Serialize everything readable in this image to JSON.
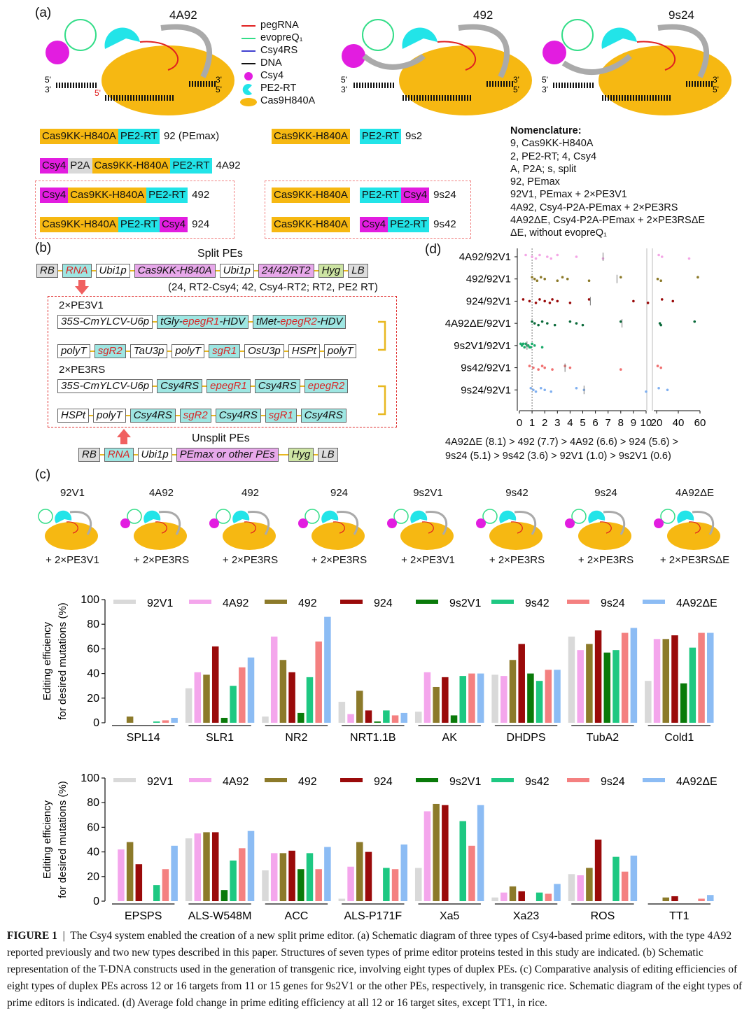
{
  "panels": {
    "a": "(a)",
    "b": "(b)",
    "c": "(c)",
    "d": "(d)"
  },
  "schematics": {
    "s1": "4A92",
    "s2": "492",
    "s3": "9s24"
  },
  "legend": [
    "pegRNA",
    "evopreQ₁",
    "Csy4RS",
    "DNA",
    "Csy4",
    "PE2-RT",
    "Cas9H840A"
  ],
  "legend_colors": [
    "#e02020",
    "#33dd88",
    "#4040d0",
    "#111111",
    "#e21de0",
    "#22e4e8",
    "#f6b812"
  ],
  "boxes": {
    "r1a": [
      "Cas9KK-H840A",
      "PE2-RT",
      "92 (PEmax)"
    ],
    "r1b": [
      "Cas9KK-H840A",
      "PE2-RT",
      "9s2"
    ],
    "r2a": [
      "Csy4",
      "P2A",
      "Cas9KK-H840A",
      "PE2-RT",
      "4A92"
    ],
    "r3a": [
      "Csy4",
      "Cas9KK-H840A",
      "PE2-RT",
      "492"
    ],
    "r3b": [
      "Cas9KK-H840A",
      "PE2-RT",
      "Csy4",
      "9s24"
    ],
    "r4a": [
      "Cas9KK-H840A",
      "PE2-RT",
      "Csy4",
      "924"
    ],
    "r4b": [
      "Cas9KK-H840A",
      "Csy4",
      "PE2-RT",
      "9s42"
    ]
  },
  "nomenclature": {
    "title": "Nomenclature:",
    "lines": [
      "9, Cas9KK-H840A",
      "2, PE2-RT; 4, Csy4",
      "A, P2A; s, split",
      "92, PEmax",
      "92V1, PEmax + 2×PE3V1",
      "4A92, Csy4-P2A-PEmax + 2×PE3RS",
      "4A92ΔE, Csy4-P2A-PEmax + 2×PE3RSΔE",
      "ΔE, without evopreQ₁"
    ]
  },
  "constructs": {
    "split_title": "Split PEs",
    "split_row": [
      "RB",
      "RNA",
      "Ubi1p",
      "Cas9KK-H840A",
      "Ubi1p",
      "24/42/RT2",
      "Hyg",
      "LB"
    ],
    "split_note": "(24, RT2-Csy4; 42, Csy4-RT2; RT2, PE2 RT)",
    "pe3v1_title": "2×PE3V1",
    "pe3v1_row1": [
      "35S-CmYLCV-U6p",
      "tGly-",
      "epegR1",
      "-HDV",
      "tMet-",
      "epegR2",
      "-HDV"
    ],
    "pe3v1_row2": [
      "polyT",
      "sgR2",
      "TaU3p",
      "polyT",
      "sgR1",
      "OsU3p",
      "HSPt",
      "polyT"
    ],
    "pe3rs_title": "2×PE3RS",
    "pe3rs_row1": [
      "35S-CmYLCV-U6p",
      "Csy4RS",
      "epegR1",
      "Csy4RS",
      "epegR2"
    ],
    "pe3rs_row2": [
      "HSPt",
      "polyT",
      "Csy4RS",
      "sgR2",
      "Csy4RS",
      "sgR1",
      "Csy4RS"
    ],
    "unsplit_title": "Unsplit PEs",
    "unsplit_row": [
      "RB",
      "RNA",
      "Ubi1p",
      "PEmax or other PEs",
      "Hyg",
      "LB"
    ]
  },
  "c_schematics": {
    "names": [
      "92V1",
      "4A92",
      "492",
      "924",
      "9s2V1",
      "9s42",
      "9s24",
      "4A92ΔE"
    ],
    "subs": [
      "+ 2×PE3V1",
      "+ 2×PE3RS",
      "+ 2×PE3RS",
      "+ 2×PE3RS",
      "+ 2×PE3V1",
      "+ 2×PE3RS",
      "+ 2×PE3RS",
      "+ 2×PE3RSΔE"
    ]
  },
  "dplot": {
    "rows": [
      "4A92/92V1",
      "492/92V1",
      "924/92V1",
      "4A92ΔE/92V1",
      "9s2V1/92V1",
      "9s42/92V1",
      "9s24/92V1"
    ],
    "ticks_left": [
      "0",
      "1",
      "2",
      "3",
      "4",
      "5",
      "6",
      "7",
      "8",
      "9",
      "10"
    ],
    "ticks_right": [
      "20",
      "40",
      "60"
    ],
    "note1": "4A92ΔE (8.1) > 492 (7.7) > 4A92 (6.6) > 924 (5.6) >",
    "note2": "9s24 (5.1) > 9s42 (3.6) > 92V1 (1.0) > 9s2V1 (0.6)",
    "colors": [
      "#f4a6e6",
      "#8c7a2a",
      "#9a0a0a",
      "#0a6a3a",
      "#1aaa6a",
      "#f07070",
      "#80b0f0"
    ]
  },
  "chart_data": [
    {
      "type": "bar",
      "ylabel": "Editing efficiency for desired mutations (%)",
      "ylim": [
        0,
        100
      ],
      "yticks": [
        "0",
        "20",
        "40",
        "60",
        "80",
        "100"
      ],
      "legend_placement": "top",
      "categories": [
        "SPL14",
        "SLR1",
        "NR2",
        "NRT1.1B",
        "AK",
        "DHDPS",
        "TubA2",
        "Cold1"
      ],
      "series": [
        {
          "name": "92V1",
          "color": "#d9d9d9",
          "values": [
            0,
            28,
            5,
            17,
            9,
            39,
            70,
            34
          ]
        },
        {
          "name": "4A92",
          "color": "#f4a6ec",
          "values": [
            0,
            41,
            70,
            7,
            41,
            38,
            59,
            68
          ]
        },
        {
          "name": "492",
          "color": "#8c7a2a",
          "values": [
            5,
            39,
            51,
            26,
            29,
            51,
            64,
            68
          ]
        },
        {
          "name": "924",
          "color": "#9a0a0a",
          "values": [
            0,
            62,
            41,
            10,
            37,
            64,
            75,
            71
          ]
        },
        {
          "name": "9s2V1",
          "color": "#0a7a0a",
          "values": [
            0,
            4,
            8,
            1,
            6,
            40,
            57,
            32
          ]
        },
        {
          "name": "9s42",
          "color": "#1ec882",
          "values": [
            1,
            30,
            37,
            10,
            38,
            34,
            59,
            61
          ]
        },
        {
          "name": "9s24",
          "color": "#f48080",
          "values": [
            2,
            45,
            66,
            6,
            40,
            43,
            73,
            73
          ]
        },
        {
          "name": "4A92ΔE",
          "color": "#8cbcf4",
          "values": [
            4,
            53,
            86,
            8,
            40,
            43,
            77,
            73
          ]
        }
      ]
    },
    {
      "type": "bar",
      "ylabel": "Editing efficiency for desired mutations (%)",
      "ylim": [
        0,
        100
      ],
      "yticks": [
        "0",
        "20",
        "40",
        "60",
        "80",
        "100"
      ],
      "legend_placement": "top",
      "categories": [
        "EPSPS",
        "ALS-W548M",
        "ACC",
        "ALS-P171F",
        "Xa5",
        "Xa23",
        "ROS",
        "TT1"
      ],
      "series": [
        {
          "name": "92V1",
          "color": "#d9d9d9",
          "values": [
            0,
            51,
            25,
            2,
            27,
            3,
            22,
            0
          ]
        },
        {
          "name": "4A92",
          "color": "#f4a6ec",
          "values": [
            42,
            55,
            39,
            28,
            73,
            7,
            21,
            0
          ]
        },
        {
          "name": "492",
          "color": "#8c7a2a",
          "values": [
            48,
            56,
            39,
            48,
            79,
            12,
            27,
            3
          ]
        },
        {
          "name": "924",
          "color": "#9a0a0a",
          "values": [
            30,
            56,
            41,
            40,
            78,
            8,
            50,
            4
          ]
        },
        {
          "name": "9s2V1",
          "color": "#0a7a0a",
          "values": [
            0,
            9,
            26,
            0,
            0,
            0,
            0,
            0
          ]
        },
        {
          "name": "9s42",
          "color": "#1ec882",
          "values": [
            13,
            33,
            39,
            27,
            65,
            7,
            36,
            0
          ]
        },
        {
          "name": "9s24",
          "color": "#f48080",
          "values": [
            26,
            43,
            26,
            26,
            45,
            6,
            24,
            2
          ]
        },
        {
          "name": "4A92ΔE",
          "color": "#8cbcf4",
          "values": [
            45,
            57,
            44,
            46,
            78,
            14,
            37,
            5
          ]
        }
      ]
    }
  ],
  "caption": {
    "label": "FIGURE 1",
    "sep": "|",
    "text": "The Csy4 system enabled the creation of a new split prime editor. (a) Schematic diagram of three types of Csy4-based prime editors, with the type 4A92 reported previously and two new types described in this paper. Structures of seven types of prime editor proteins tested in this study are indicated. (b) Schematic representation of the T-DNA constructs used in the generation of transgenic rice, involving eight types of duplex PEs. (c) Comparative analysis of editing efficiencies of eight types of duplex PEs across 12 or 16 targets from 11 or 15 genes for 9s2V1 or the other PEs, respectively, in transgenic rice. Schematic diagram of the eight types of prime editors is indicated. (d) Average fold change in prime editing efficiency at all 12 or 16 target sites, except TT1, in rice."
  }
}
